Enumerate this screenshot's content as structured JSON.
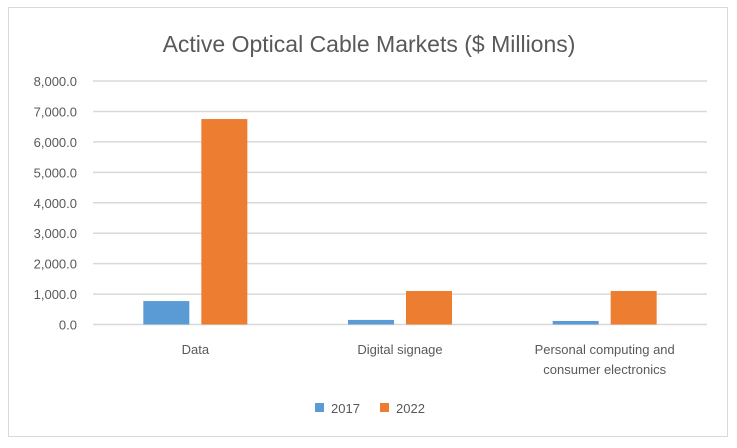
{
  "chart_data": {
    "type": "bar",
    "title": "Active Optical Cable Markets ($ Millions)",
    "xlabel": "",
    "ylabel": "",
    "categories": [
      [
        "Data"
      ],
      [
        "Digital signage"
      ],
      [
        "Personal computing and",
        "consumer electronics"
      ]
    ],
    "category_names": [
      "Data",
      "Digital signage",
      "Personal computing and consumer electronics"
    ],
    "series": [
      {
        "name": "2017",
        "color": "#5b9bd5",
        "values": [
          770,
          150,
          115
        ]
      },
      {
        "name": "2022",
        "color": "#ed7d31",
        "values": [
          6750,
          1100,
          1100
        ]
      }
    ],
    "ylim": [
      0,
      8000
    ],
    "yticks": [
      0,
      1000,
      2000,
      3000,
      4000,
      5000,
      6000,
      7000,
      8000
    ],
    "ytick_labels": [
      "0.0",
      "1,000.0",
      "2,000.0",
      "3,000.0",
      "4,000.0",
      "5,000.0",
      "6,000.0",
      "7,000.0",
      "8,000.0"
    ],
    "grid": true,
    "legend_position": "bottom"
  }
}
